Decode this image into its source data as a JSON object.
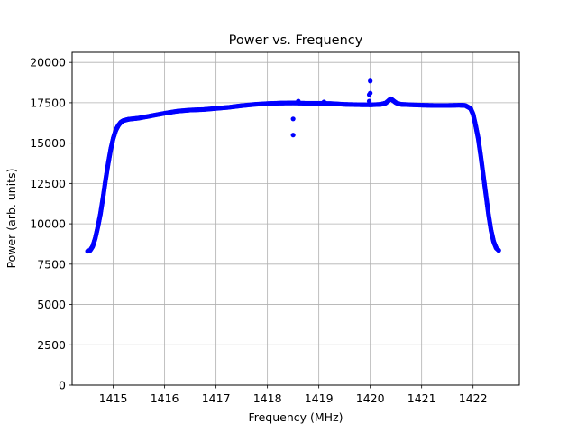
{
  "chart_data": {
    "type": "scatter",
    "title": "Power vs. Frequency",
    "xlabel": "Frequency (MHz)",
    "ylabel": "Power (arb. units)",
    "xlim": [
      1414.2,
      1422.9
    ],
    "ylim": [
      0,
      20625
    ],
    "xticks": [
      1415,
      1416,
      1417,
      1418,
      1419,
      1420,
      1421,
      1422
    ],
    "yticks": [
      0,
      2500,
      5000,
      7500,
      10000,
      12500,
      15000,
      17500,
      20000
    ],
    "grid": true,
    "marker_color": "#0000ff",
    "series": [
      {
        "points": [
          [
            1414.5,
            8300
          ],
          [
            1414.55,
            8350
          ],
          [
            1414.6,
            8600
          ],
          [
            1414.65,
            9100
          ],
          [
            1414.7,
            9800
          ],
          [
            1414.75,
            10600
          ],
          [
            1414.8,
            11600
          ],
          [
            1414.85,
            12700
          ],
          [
            1414.9,
            13700
          ],
          [
            1414.95,
            14600
          ],
          [
            1415.0,
            15300
          ],
          [
            1415.05,
            15800
          ],
          [
            1415.1,
            16100
          ],
          [
            1415.15,
            16300
          ],
          [
            1415.2,
            16400
          ],
          [
            1415.3,
            16480
          ],
          [
            1415.5,
            16550
          ],
          [
            1415.75,
            16700
          ],
          [
            1416.0,
            16850
          ],
          [
            1416.25,
            16980
          ],
          [
            1416.5,
            17050
          ],
          [
            1416.75,
            17080
          ],
          [
            1417.0,
            17150
          ],
          [
            1417.25,
            17220
          ],
          [
            1417.5,
            17320
          ],
          [
            1417.75,
            17400
          ],
          [
            1418.0,
            17450
          ],
          [
            1418.25,
            17480
          ],
          [
            1418.5,
            17490
          ],
          [
            1418.75,
            17470
          ],
          [
            1419.0,
            17470
          ],
          [
            1419.25,
            17450
          ],
          [
            1419.5,
            17400
          ],
          [
            1419.75,
            17380
          ],
          [
            1420.0,
            17370
          ],
          [
            1420.2,
            17400
          ],
          [
            1420.3,
            17480
          ],
          [
            1420.4,
            17750
          ],
          [
            1420.5,
            17500
          ],
          [
            1420.6,
            17400
          ],
          [
            1420.75,
            17380
          ],
          [
            1421.0,
            17350
          ],
          [
            1421.25,
            17330
          ],
          [
            1421.5,
            17330
          ],
          [
            1421.75,
            17350
          ],
          [
            1421.85,
            17330
          ],
          [
            1421.95,
            17150
          ],
          [
            1422.0,
            16800
          ],
          [
            1422.05,
            16100
          ],
          [
            1422.1,
            15300
          ],
          [
            1422.15,
            14200
          ],
          [
            1422.2,
            13000
          ],
          [
            1422.25,
            11800
          ],
          [
            1422.3,
            10600
          ],
          [
            1422.35,
            9600
          ],
          [
            1422.4,
            8900
          ],
          [
            1422.45,
            8500
          ],
          [
            1422.5,
            8350
          ]
        ],
        "outliers": [
          [
            1418.5,
            15500
          ],
          [
            1418.5,
            16500
          ],
          [
            1418.6,
            17600
          ],
          [
            1419.1,
            17550
          ],
          [
            1420.0,
            18850
          ],
          [
            1420.0,
            18100
          ],
          [
            1419.98,
            18000
          ],
          [
            1419.98,
            17600
          ]
        ]
      }
    ]
  }
}
